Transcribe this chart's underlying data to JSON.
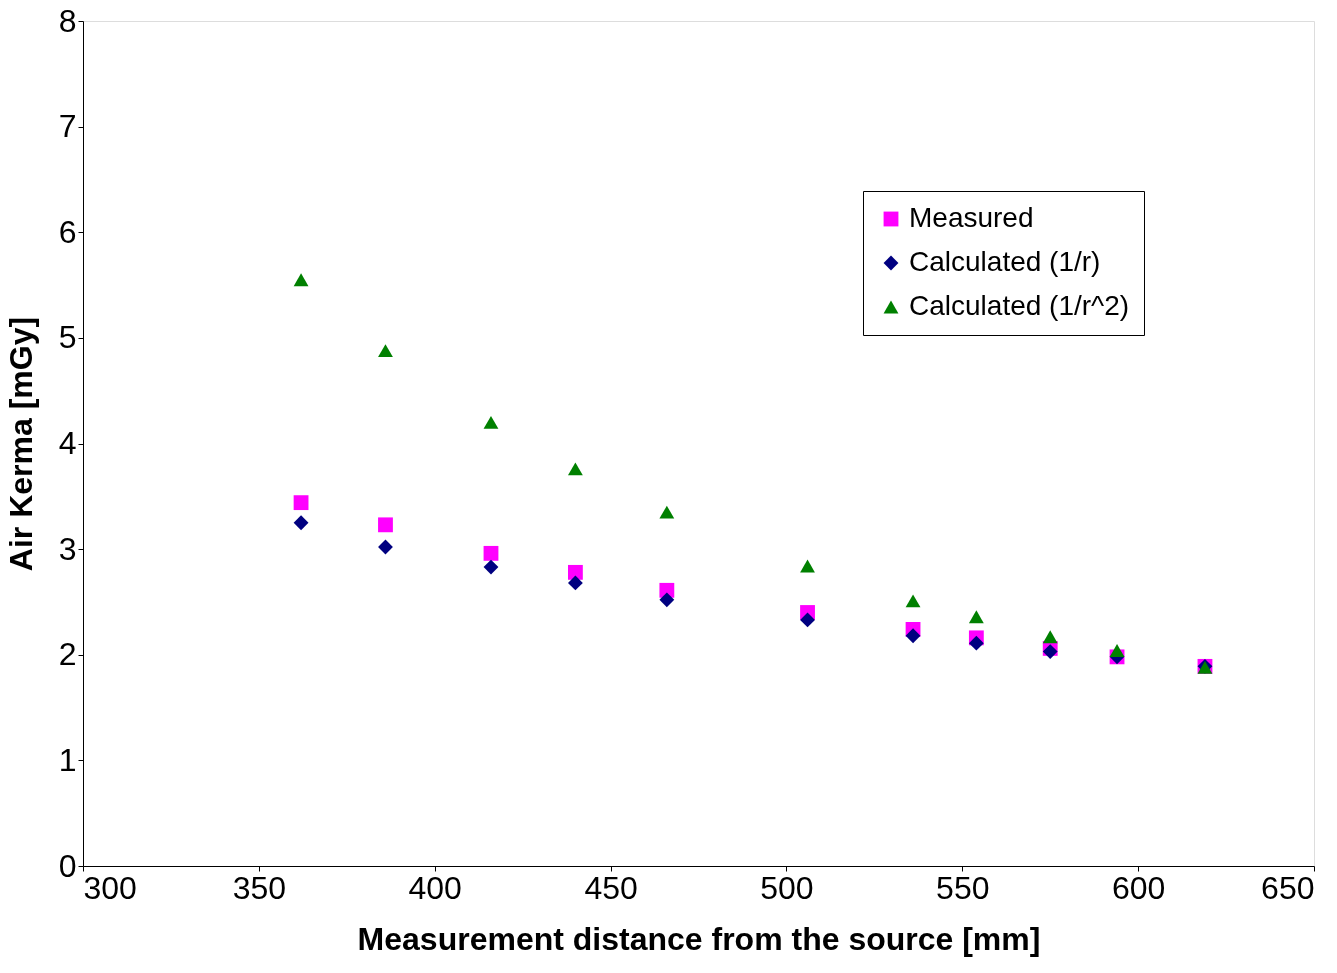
{
  "chart_data": {
    "type": "scatter",
    "xlabel": "Measurement distance from the source [mm]",
    "ylabel": "Air Kerma [mGy]",
    "x": [
      362,
      386,
      416,
      440,
      466,
      506,
      536,
      554,
      575,
      594,
      619
    ],
    "series": [
      {
        "name": "Measured",
        "color": "#ff00ff",
        "marker": "square",
        "values": [
          3.44,
          3.23,
          2.96,
          2.78,
          2.61,
          2.4,
          2.24,
          2.16,
          2.06,
          1.98,
          1.89
        ]
      },
      {
        "name": "Calculated (1/r)",
        "color": "#000080",
        "marker": "diamond",
        "values": [
          3.25,
          3.02,
          2.83,
          2.68,
          2.52,
          2.33,
          2.18,
          2.11,
          2.03,
          1.98,
          1.89
        ]
      },
      {
        "name": "Calculated (1/r^2)",
        "color": "#008000",
        "marker": "triangle",
        "values": [
          5.55,
          4.88,
          4.2,
          3.76,
          3.35,
          2.84,
          2.51,
          2.36,
          2.17,
          2.04,
          1.88
        ]
      }
    ],
    "xlim": [
      300,
      650
    ],
    "xticks": [
      300,
      350,
      400,
      450,
      500,
      550,
      600,
      650
    ],
    "ylim": [
      0,
      8
    ],
    "yticks": [
      0,
      1,
      2,
      3,
      4,
      5,
      6,
      7,
      8
    ],
    "grid": false,
    "legend": "top right"
  }
}
